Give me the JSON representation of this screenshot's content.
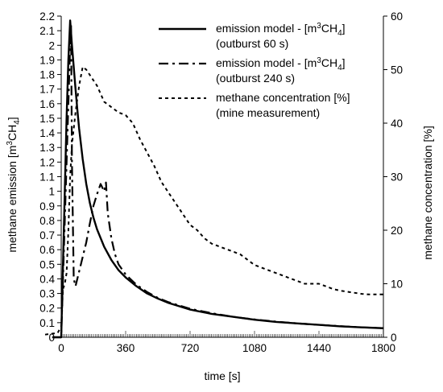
{
  "chart_data": {
    "type": "line",
    "xlabel": "time [s]",
    "ylabel_left_main": "methane emission [m",
    "ylabel_left_sup": "3",
    "ylabel_left_mid": "CH",
    "ylabel_left_sub": "4",
    "ylabel_left_end": "]",
    "ylabel_right": "methane concentration [%]",
    "xlim": [
      0,
      1800
    ],
    "ylim_left": [
      0,
      2.2
    ],
    "ylim_right": [
      0,
      60
    ],
    "x_ticks": [
      "0",
      "360",
      "720",
      "1080",
      "1440",
      "1800"
    ],
    "y_left_ticks": [
      "0",
      "0.1",
      "0.2",
      "0.3",
      "0.4",
      "0.5",
      "0.6",
      "0.7",
      "0.8",
      "0.9",
      "1",
      "1.1",
      "1.2",
      "1.3",
      "1.4",
      "1.5",
      "1.6",
      "1.7",
      "1.8",
      "1.9",
      "2",
      "2.1",
      "2.2"
    ],
    "y_right_ticks": [
      "0",
      "10",
      "20",
      "30",
      "40",
      "50",
      "60"
    ],
    "grid": false,
    "legend_position": "top-right",
    "legend": [
      {
        "line1_pre": "emission model - [m",
        "line1_sup": "3",
        "line1_mid": "CH",
        "line1_sub": "4",
        "line1_end": "]",
        "line2": "(outburst 60 s)",
        "style": "solid"
      },
      {
        "line1_pre": "emission model - [m",
        "line1_sup": "3",
        "line1_mid": "CH",
        "line1_sub": "4",
        "line1_end": "]",
        "line2": "(outburst 240 s)",
        "style": "dashdot"
      },
      {
        "line1_pre": "methane concentration [%]",
        "line1_sup": "",
        "line1_mid": "",
        "line1_sub": "",
        "line1_end": "",
        "line2": "(mine measurement)",
        "style": "dashed"
      }
    ],
    "series": [
      {
        "name": "emission model (outburst 60 s)",
        "axis": "left",
        "style": "solid",
        "x": [
          -50,
          0,
          10,
          20,
          30,
          40,
          50,
          60,
          70,
          80,
          90,
          100,
          120,
          140,
          160,
          180,
          200,
          240,
          280,
          320,
          360,
          420,
          480,
          540,
          600,
          720,
          840,
          960,
          1080,
          1200,
          1320,
          1440,
          1560,
          1680,
          1800
        ],
        "values": [
          0.0,
          0.0,
          0.5,
          1.0,
          1.5,
          1.9,
          2.17,
          2.0,
          1.85,
          1.7,
          1.56,
          1.43,
          1.22,
          1.05,
          0.92,
          0.82,
          0.74,
          0.62,
          0.53,
          0.46,
          0.41,
          0.35,
          0.3,
          0.265,
          0.235,
          0.19,
          0.16,
          0.14,
          0.12,
          0.105,
          0.095,
          0.085,
          0.075,
          0.068,
          0.062
        ]
      },
      {
        "name": "emission model (outburst 240 s)",
        "axis": "left",
        "style": "dashdot",
        "x": [
          -50,
          0,
          10,
          20,
          30,
          40,
          50,
          55,
          60,
          70,
          80,
          100,
          120,
          140,
          160,
          180,
          200,
          220,
          240,
          250,
          260,
          280,
          300,
          320,
          360,
          420,
          480,
          540,
          600,
          720,
          840,
          960,
          1080,
          1200,
          1320,
          1440,
          1560,
          1680,
          1800
        ],
        "values": [
          0.0,
          0.0,
          0.4,
          0.8,
          1.2,
          1.6,
          2.0,
          2.14,
          1.2,
          0.4,
          0.35,
          0.45,
          0.55,
          0.65,
          0.78,
          0.9,
          0.98,
          1.05,
          1.0,
          1.06,
          0.85,
          0.68,
          0.57,
          0.5,
          0.43,
          0.36,
          0.31,
          0.27,
          0.24,
          0.195,
          0.165,
          0.14,
          0.122,
          0.107,
          0.095,
          0.085,
          0.076,
          0.068,
          0.062
        ]
      },
      {
        "name": "methane concentration (mine measurement)",
        "axis": "right",
        "style": "dashed",
        "x": [
          -90,
          -20,
          0,
          10,
          20,
          30,
          40,
          50,
          60,
          80,
          100,
          120,
          140,
          160,
          180,
          200,
          220,
          240,
          280,
          320,
          360,
          400,
          440,
          480,
          520,
          560,
          600,
          640,
          680,
          720,
          760,
          800,
          840,
          880,
          920,
          960,
          1000,
          1040,
          1080,
          1120,
          1160,
          1200,
          1240,
          1280,
          1320,
          1360,
          1400,
          1440,
          1480,
          1520,
          1560,
          1600,
          1640,
          1680,
          1720,
          1760,
          1800
        ],
        "values": [
          0.5,
          0.8,
          2,
          9,
          10,
          12,
          20,
          30,
          36,
          42,
          47,
          50.5,
          50,
          49,
          48,
          47,
          45.5,
          44,
          43,
          42,
          41.5,
          40,
          37,
          34.5,
          32,
          29,
          27,
          25,
          23,
          21,
          20,
          18.5,
          17.5,
          17,
          16.5,
          16,
          15.5,
          14.5,
          13.5,
          13,
          12.5,
          12,
          11.5,
          11,
          10.5,
          10,
          10,
          10,
          9.5,
          9,
          8.7,
          8.5,
          8.3,
          8.1,
          8,
          8,
          8
        ]
      }
    ]
  }
}
